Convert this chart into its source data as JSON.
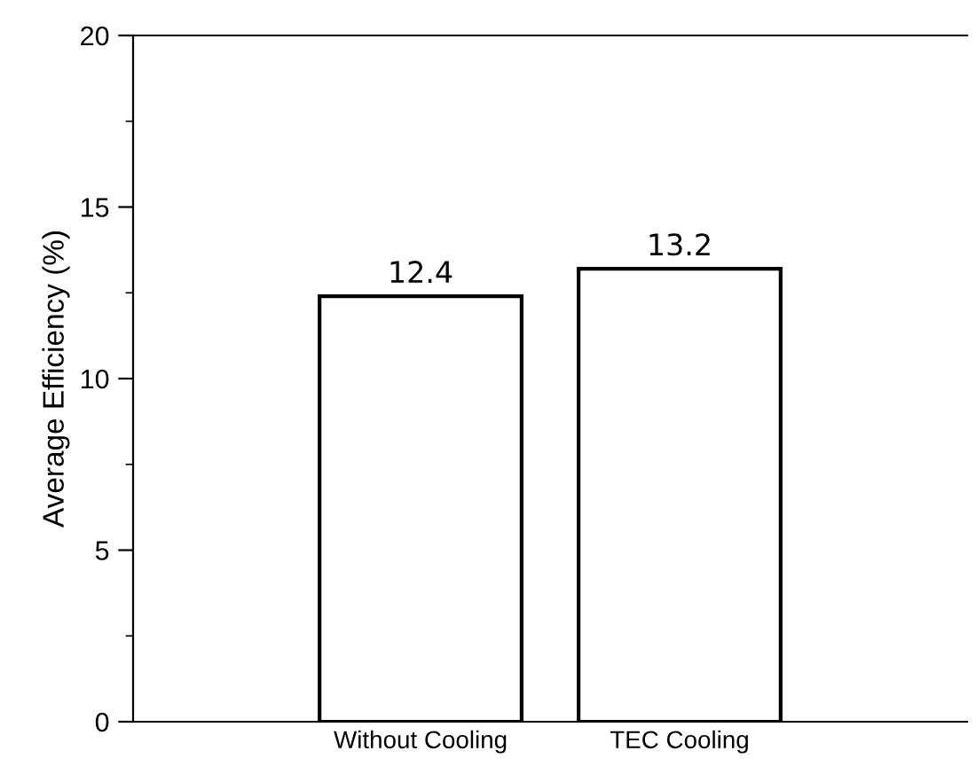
{
  "chart_data": {
    "type": "bar",
    "ylabel": "Average Efficiency (%)",
    "categories": [
      "Without Cooling",
      "TEC Cooling"
    ],
    "values": [
      12.4,
      13.2
    ],
    "color": "#ffffff",
    "ylim": [
      0,
      20
    ],
    "yticks": [
      0,
      5,
      10,
      15,
      20
    ],
    "grid": false,
    "data_labels": true
  }
}
